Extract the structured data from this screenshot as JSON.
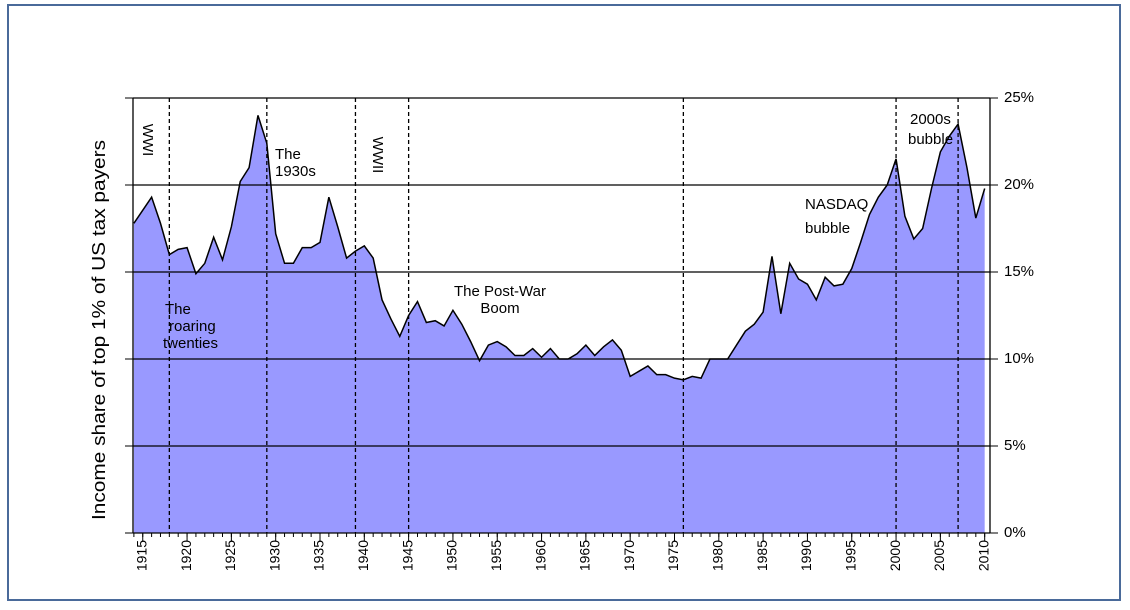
{
  "chart_data": {
    "type": "area",
    "y_axis_label": "Income share of top 1% of US tax payers",
    "color": "#9999ff",
    "line_color": "#000000",
    "x": [
      1914,
      1916,
      1917,
      1918,
      1919,
      1920,
      1921,
      1922,
      1923,
      1924,
      1925,
      1926,
      1927,
      1928,
      1929,
      1930,
      1931,
      1932,
      1933,
      1934,
      1935,
      1936,
      1937,
      1938,
      1939,
      1940,
      1941,
      1942,
      1943,
      1944,
      1945,
      1946,
      1947,
      1948,
      1949,
      1950,
      1951,
      1952,
      1953,
      1954,
      1955,
      1956,
      1957,
      1958,
      1959,
      1960,
      1961,
      1962,
      1963,
      1964,
      1965,
      1966,
      1967,
      1968,
      1969,
      1970,
      1971,
      1972,
      1973,
      1974,
      1975,
      1976,
      1977,
      1978,
      1979,
      1980,
      1981,
      1982,
      1983,
      1984,
      1985,
      1986,
      1987,
      1988,
      1989,
      1990,
      1991,
      1992,
      1993,
      1994,
      1995,
      1996,
      1997,
      1998,
      1999,
      2000,
      2001,
      2002,
      2003,
      2004,
      2005,
      2006,
      2007,
      2008,
      2009,
      2010
    ],
    "values": [
      17.8,
      19.3,
      17.8,
      16.0,
      16.3,
      16.4,
      14.9,
      15.5,
      17.0,
      15.7,
      17.6,
      20.2,
      21.0,
      24.0,
      22.4,
      17.2,
      15.5,
      15.5,
      16.4,
      16.4,
      16.7,
      19.3,
      17.6,
      15.8,
      16.2,
      16.5,
      15.8,
      13.4,
      12.3,
      11.3,
      12.5,
      13.3,
      12.1,
      12.2,
      11.9,
      12.8,
      12.0,
      11.0,
      9.9,
      10.8,
      11.0,
      10.7,
      10.2,
      10.2,
      10.6,
      10.1,
      10.6,
      10.0,
      10.0,
      10.3,
      10.8,
      10.2,
      10.7,
      11.1,
      10.5,
      9.0,
      9.3,
      9.6,
      9.1,
      9.1,
      8.9,
      8.8,
      9.0,
      8.9,
      10.0,
      10.0,
      10.0,
      10.8,
      11.6,
      12.0,
      12.7,
      15.9,
      12.6,
      15.5,
      14.6,
      14.3,
      13.4,
      14.7,
      14.2,
      14.3,
      15.2,
      16.7,
      18.3,
      19.3,
      20.0,
      21.5,
      18.2,
      16.9,
      17.5,
      19.8,
      21.9,
      22.8,
      23.5,
      21.0,
      18.1,
      19.8
    ],
    "xlim": [
      1913.9,
      2010.6
    ],
    "xticks": [
      1915,
      1920,
      1925,
      1930,
      1935,
      1940,
      1945,
      1950,
      1955,
      1960,
      1965,
      1970,
      1975,
      1980,
      1985,
      1990,
      1995,
      2000,
      2005,
      2010
    ],
    "ylim": [
      0,
      25
    ],
    "yticks": [
      {
        "value": 0,
        "label": "0%"
      },
      {
        "value": 5,
        "label": "5%"
      },
      {
        "value": 10,
        "label": "10%"
      },
      {
        "value": 15,
        "label": "15%"
      },
      {
        "value": 20,
        "label": "20%"
      },
      {
        "value": 25,
        "label": "25%"
      }
    ],
    "grid": true,
    "reference_lines": [
      1918,
      1929,
      1939,
      1945,
      1976,
      2000,
      2007
    ],
    "annotations": [
      {
        "lines": [
          "WWI"
        ]
      },
      {
        "lines": [
          "WWII"
        ]
      },
      {
        "lines": [
          "The",
          "1930s"
        ]
      },
      {
        "lines": [
          "The",
          "roaring",
          "twenties"
        ]
      },
      {
        "lines": [
          "The Post-War",
          "Boom"
        ]
      },
      {
        "lines": [
          "NASDAQ",
          "bubble"
        ]
      },
      {
        "lines": [
          "2000s",
          "bubble"
        ]
      }
    ]
  }
}
